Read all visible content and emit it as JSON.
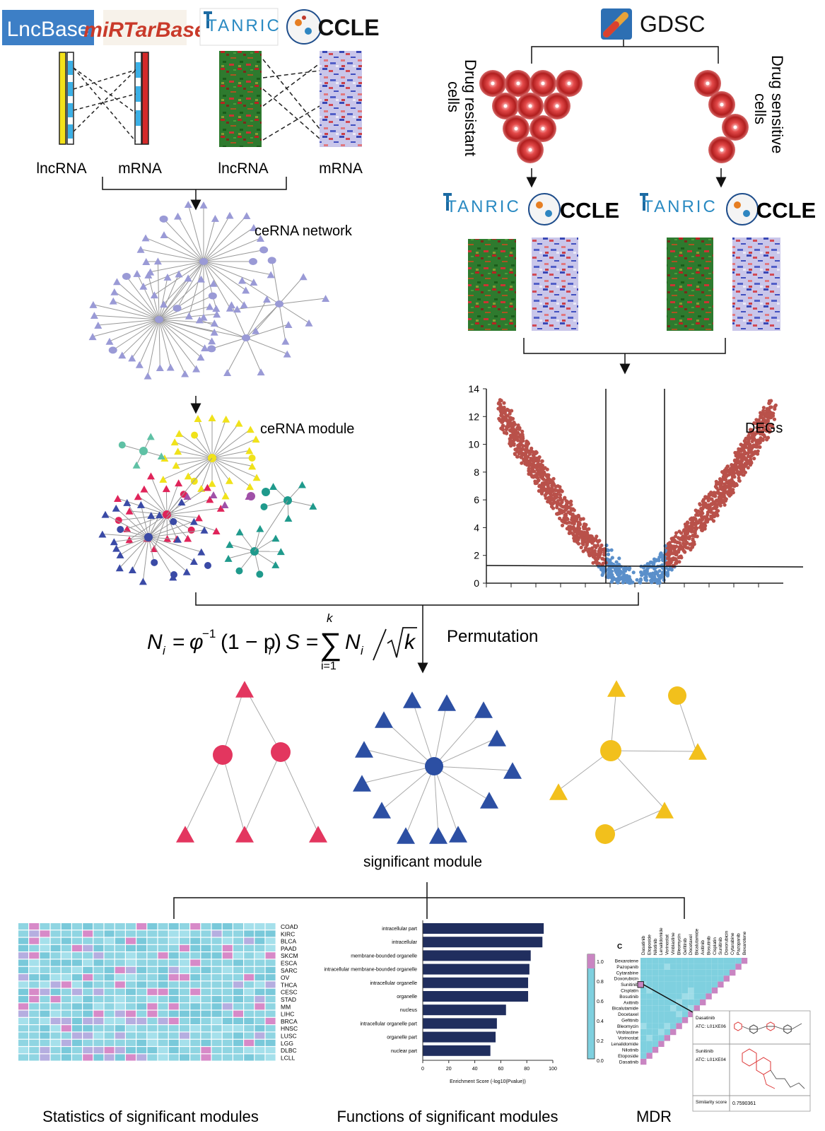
{
  "logos": {
    "lncbase": "LncBase",
    "mirtarbase": "miRTarBase",
    "tanric": "TANRIC",
    "ccle": "CCLE",
    "gdsc": "GDSC"
  },
  "left_panel": {
    "label_lncrna_1": "lncRNA",
    "label_mrna_1": "mRNA",
    "label_lncrna_2": "lncRNA",
    "label_mrna_2": "mRNA",
    "network_label": "ceRNA network",
    "module_label": "ceRNA module"
  },
  "right_panel": {
    "resistant_label_1": "Drug resistant",
    "resistant_label_2": "cells",
    "sensitive_label_1": "Drug sensitive",
    "sensitive_label_2": "cells",
    "volcano_label": "DEGs",
    "volcano_yticks": [
      "0",
      "2",
      "4",
      "6",
      "8",
      "10",
      "12",
      "14"
    ]
  },
  "formula": {
    "n_lhs": "N",
    "n_sub": "i",
    "phi": "φ",
    "phi_sup": "−1",
    "one_minus": "(1 − p",
    "close": ")",
    "s_lhs": "S =",
    "sum": "∑",
    "sum_top": "k",
    "sum_bot": "i=1",
    "ni": "N",
    "sqrt_k": "k",
    "permutation": "Permutation"
  },
  "significant_module_label": "significant module",
  "bottom": {
    "stats_caption": "Statistics of significant modules",
    "functions_caption": "Functions of significant modules",
    "mdr_caption": "MDR",
    "cancer_types": [
      "COAD",
      "KIRC",
      "BLCA",
      "PAAD",
      "SKCM",
      "ESCA",
      "SARC",
      "OV",
      "THCA",
      "CESC",
      "STAD",
      "MM",
      "LIHC",
      "BRCA",
      "HNSC",
      "LUSC",
      "LGG",
      "DLBC",
      "LCLL"
    ],
    "go_terms": [
      "intracellular part",
      "intracellular",
      "membrane-bounded organelle",
      "intracellular membrane-bounded organelle",
      "intracellular organelle",
      "organelle",
      "nucleus",
      "intracellular organelle part",
      "organelle part",
      "nuclear part"
    ],
    "go_values": [
      93,
      92,
      83,
      82,
      81,
      81,
      64,
      57,
      56,
      52
    ],
    "go_xticks": [
      "0",
      "20",
      "40",
      "60",
      "80",
      "100"
    ],
    "go_xlabel": "Enrichment Score (-log10(Pvalue))",
    "drugs": [
      "Bexarotene",
      "Pazopanib",
      "Cytarabine",
      "Doxorubicin",
      "Sunitinib",
      "Cisplatin",
      "Bosutinib",
      "Axitinib",
      "Bicalutamide",
      "Docetaxel",
      "Gefitinib",
      "Bleomycin",
      "Vinblastine",
      "Vorinostat",
      "Lenalidomide",
      "Nilotinib",
      "Etoposide",
      "Dasatinib"
    ],
    "mdr_letter": "C",
    "colorbar_ticks": [
      "1.0",
      "0.8",
      "0.6",
      "0.4",
      "0.2",
      "0.0"
    ],
    "drug1_name": "Dasatinib",
    "drug1_atc": "ATC: L01XE06",
    "drug2_name": "Sunitinib",
    "drug2_atc": "ATC: L01XE04",
    "similarity_label": "Similarity score",
    "similarity_value": "0.7590361"
  }
}
